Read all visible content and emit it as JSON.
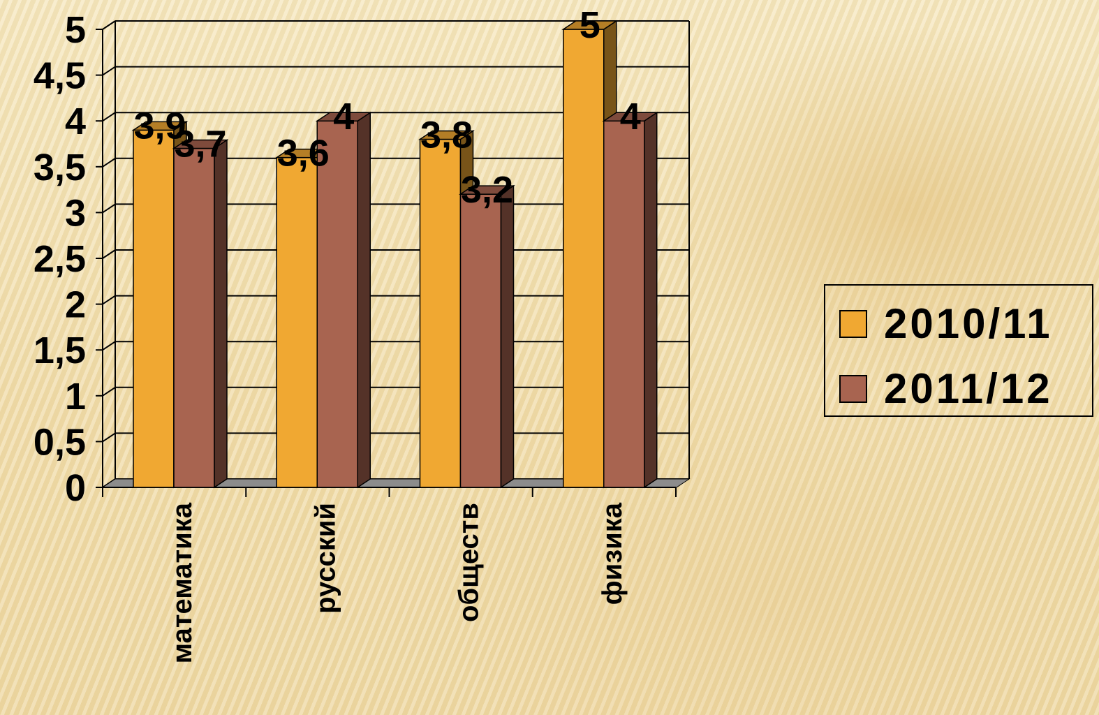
{
  "chart_data": {
    "type": "bar",
    "categories": [
      "математика",
      "русский",
      "обществ",
      "физика"
    ],
    "series": [
      {
        "name": "2010/11",
        "values": [
          3.9,
          3.6,
          3.8,
          5
        ],
        "labels": [
          "3,9",
          "3,6",
          "3,8",
          "5"
        ],
        "color": "#f0a832"
      },
      {
        "name": "2011/12",
        "values": [
          3.7,
          4,
          3.2,
          4
        ],
        "labels": [
          "3,7",
          "4",
          "3,2",
          "4"
        ],
        "color": "#a86450"
      }
    ],
    "yticks": [
      "0",
      "0,5",
      "1",
      "1,5",
      "2",
      "2,5",
      "3",
      "3,5",
      "4",
      "4,5",
      "5"
    ],
    "ylim": [
      0,
      5
    ],
    "grid": true,
    "style": "3d-clustered-column",
    "legend_position": "right"
  },
  "legend": {
    "items": [
      {
        "label": "2010/11",
        "color": "#f0a832"
      },
      {
        "label": "2011/12",
        "color": "#a86450"
      }
    ]
  }
}
